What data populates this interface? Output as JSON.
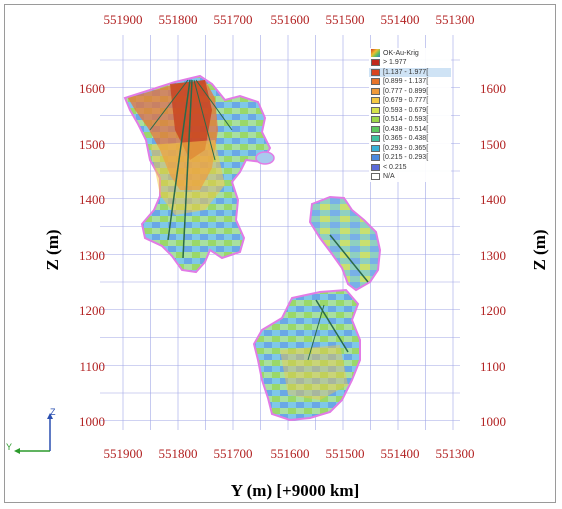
{
  "x_axis": {
    "title": "Y (m) [+9000 km]",
    "ticks": [
      "551900",
      "551800",
      "551700",
      "551600",
      "551500",
      "551400",
      "551300"
    ]
  },
  "y_axis": {
    "title": "Z (m)",
    "ticks": [
      "1600",
      "1500",
      "1400",
      "1300",
      "1200",
      "1100",
      "1000"
    ]
  },
  "legend": {
    "title": "OK-Au-Krig",
    "items": [
      {
        "label": "> 1.977",
        "color": "#c0281c"
      },
      {
        "label": "[1.137 - 1.977[",
        "color": "#d8431e",
        "selected": true
      },
      {
        "label": "[0.899 - 1.137[",
        "color": "#e8742a"
      },
      {
        "label": "[0.777 - 0.899[",
        "color": "#f09a3a"
      },
      {
        "label": "[0.679 - 0.777[",
        "color": "#f4c843"
      },
      {
        "label": "[0.593 - 0.679[",
        "color": "#d6e24a"
      },
      {
        "label": "[0.514 - 0.593[",
        "color": "#9ed84a"
      },
      {
        "label": "[0.438 - 0.514[",
        "color": "#5ec860"
      },
      {
        "label": "[0.365 - 0.438[",
        "color": "#40c0a0"
      },
      {
        "label": "[0.293 - 0.365[",
        "color": "#38b0d8"
      },
      {
        "label": "[0.215 - 0.293[",
        "color": "#4a88e0"
      },
      {
        "label": "< 0.215",
        "color": "#5a6ad8"
      },
      {
        "label": "N/A",
        "color": "#ffffff"
      }
    ]
  },
  "triad": {
    "z_label": "Z",
    "y_label": "Y"
  },
  "colors": {
    "tick_text": "#b22222",
    "grid": "#9fa6e6",
    "outline": "#e27be6"
  }
}
